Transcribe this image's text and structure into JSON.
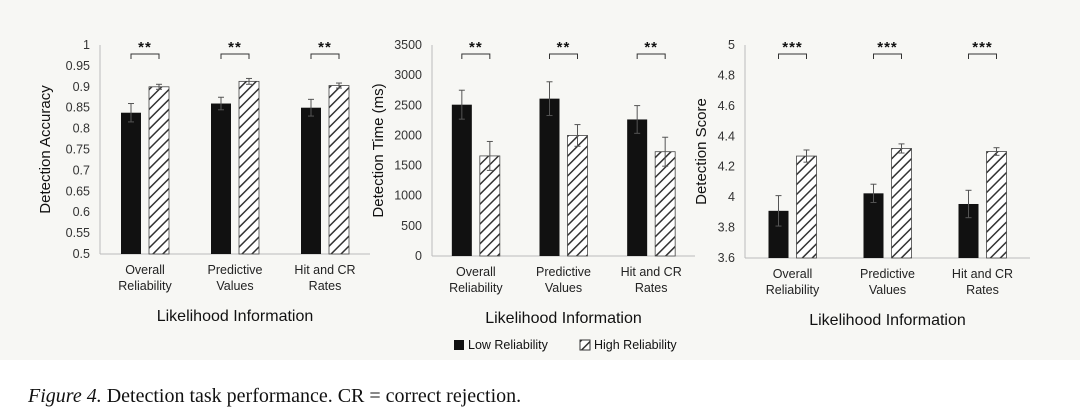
{
  "caption": {
    "figure_label": "Figure 4.",
    "text": "Detection task performance. CR = correct rejection."
  },
  "legend": {
    "low": "Low Reliability",
    "high": "High Reliability"
  },
  "colors": {
    "low_bar": "#111111",
    "high_stripe": "#333333",
    "panel_bg": "#f7f7f4"
  },
  "chart_data": [
    {
      "type": "bar",
      "ylabel": "Detection Accuracy",
      "xlabel": "Likelihood Information",
      "categories": [
        [
          "Overall",
          "Reliability"
        ],
        [
          "Predictive",
          "Values"
        ],
        [
          "Hit and CR",
          "Rates"
        ]
      ],
      "ylim": [
        0.5,
        1
      ],
      "yticks": [
        "0.5",
        "0.55",
        "0.6",
        "0.65",
        "0.7",
        "0.75",
        "0.8",
        "0.85",
        "0.9",
        "0.95",
        "1"
      ],
      "series": [
        {
          "name": "Low Reliability",
          "values": [
            0.838,
            0.86,
            0.85
          ],
          "errors": [
            0.022,
            0.015,
            0.02
          ]
        },
        {
          "name": "High Reliability",
          "values": [
            0.9,
            0.913,
            0.903
          ],
          "errors": [
            0.006,
            0.007,
            0.006
          ]
        }
      ],
      "significance": [
        "**",
        "**",
        "**"
      ]
    },
    {
      "type": "bar",
      "ylabel": "Detection Time (ms)",
      "xlabel": "Likelihood Information",
      "categories": [
        [
          "Overall",
          "Reliability"
        ],
        [
          "Predictive",
          "Values"
        ],
        [
          "Hit and CR",
          "Rates"
        ]
      ],
      "ylim": [
        0,
        3500
      ],
      "yticks": [
        "0",
        "500",
        "1000",
        "1500",
        "2000",
        "2500",
        "3000",
        "3500"
      ],
      "series": [
        {
          "name": "Low Reliability",
          "values": [
            2510,
            2610,
            2265
          ],
          "errors": [
            240,
            280,
            230
          ]
        },
        {
          "name": "High Reliability",
          "values": [
            1660,
            2000,
            1730
          ],
          "errors": [
            240,
            180,
            240
          ]
        }
      ],
      "significance": [
        "**",
        "**",
        "**"
      ]
    },
    {
      "type": "bar",
      "ylabel": "Detection Score",
      "xlabel": "Likelihood Information",
      "categories": [
        [
          "Overall",
          "Reliability"
        ],
        [
          "Predictive",
          "Values"
        ],
        [
          "Hit and CR",
          "Rates"
        ]
      ],
      "ylim": [
        3.6,
        5
      ],
      "yticks": [
        "3.6",
        "3.8",
        "4",
        "4.2",
        "4.4",
        "4.6",
        "4.8",
        "5"
      ],
      "series": [
        {
          "name": "Low Reliability",
          "values": [
            3.91,
            4.025,
            3.955
          ],
          "errors": [
            0.1,
            0.06,
            0.09
          ]
        },
        {
          "name": "High Reliability",
          "values": [
            4.27,
            4.32,
            4.3
          ],
          "errors": [
            0.04,
            0.03,
            0.025
          ]
        }
      ],
      "significance": [
        "***",
        "***",
        "***"
      ]
    }
  ]
}
